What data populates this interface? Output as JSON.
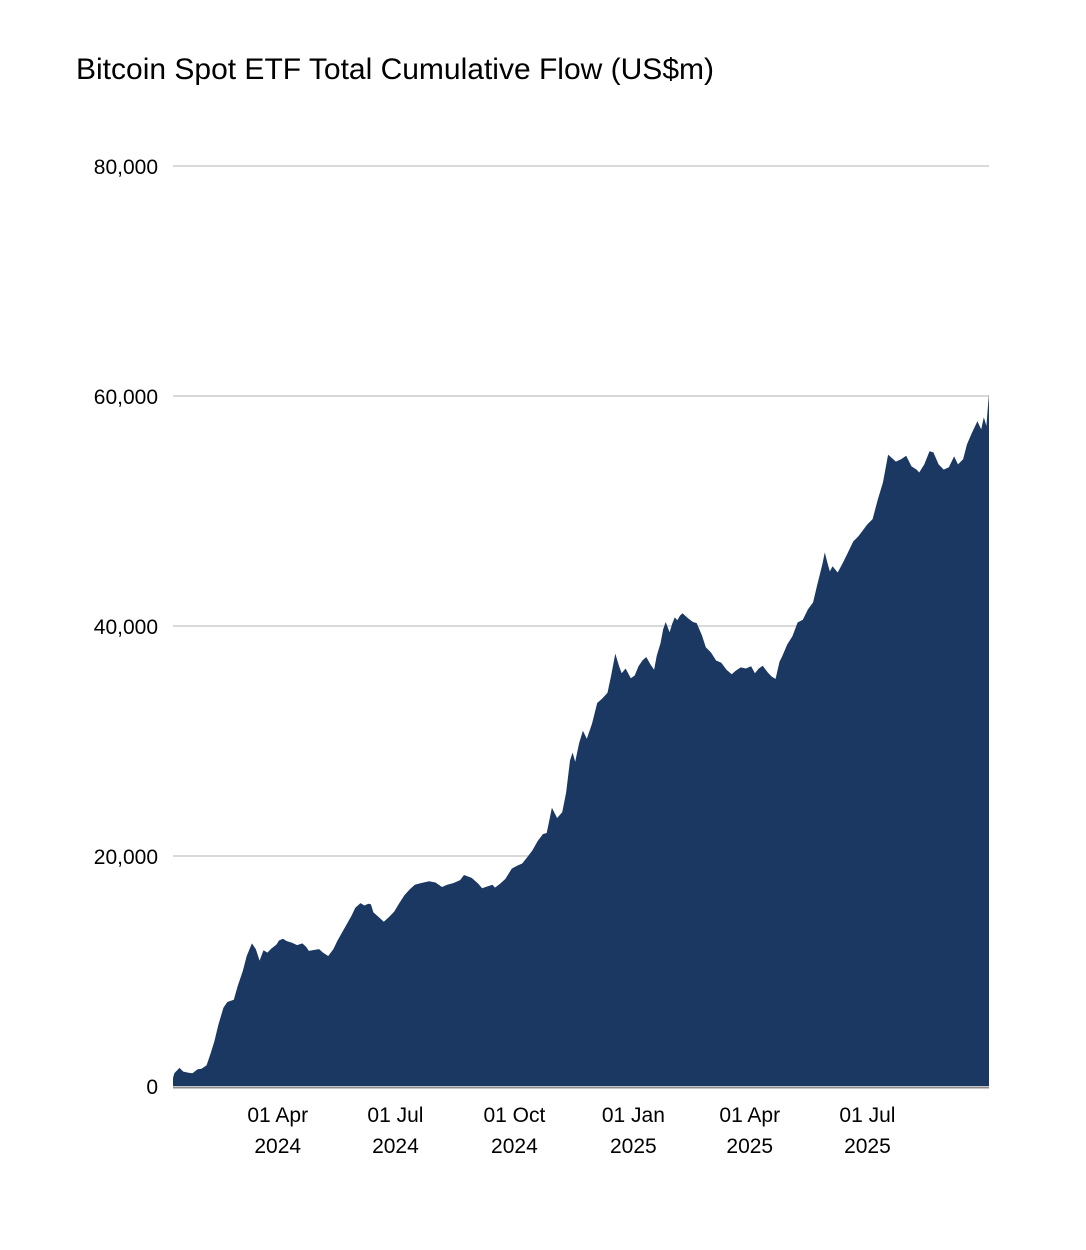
{
  "chart_data": {
    "type": "area",
    "title": "Bitcoin Spot ETF Total Cumulative Flow (US$m)",
    "xlabel": "",
    "ylabel": "",
    "ylim": [
      0,
      80000
    ],
    "x_range": [
      "2024-01-11",
      "2025-10-03"
    ],
    "grid": true,
    "legend_position": "none",
    "colors": {
      "area": "#1b3863",
      "gridline": "#d9d9d9",
      "axis_line": "#8c8c8c",
      "text": "#000000",
      "background": "#ffffff"
    },
    "y_ticks": [
      {
        "value": 0,
        "label": "0"
      },
      {
        "value": 20000,
        "label": "20,000"
      },
      {
        "value": 40000,
        "label": "40,000"
      },
      {
        "value": 60000,
        "label": "60,000"
      },
      {
        "value": 80000,
        "label": "80,000"
      }
    ],
    "x_ticks": [
      {
        "date": "2024-04-01",
        "line1": "01 Apr",
        "line2": "2024"
      },
      {
        "date": "2024-07-01",
        "line1": "01 Jul",
        "line2": "2024"
      },
      {
        "date": "2024-10-01",
        "line1": "01 Oct",
        "line2": "2024"
      },
      {
        "date": "2025-01-01",
        "line1": "01 Jan",
        "line2": "2025"
      },
      {
        "date": "2025-04-01",
        "line1": "01 Apr",
        "line2": "2025"
      },
      {
        "date": "2025-07-01",
        "line1": "01 Jul",
        "line2": "2025"
      }
    ],
    "series": [
      {
        "points": [
          [
            "2024-01-11",
            700
          ],
          [
            "2024-01-12",
            1100
          ],
          [
            "2024-01-16",
            1570
          ],
          [
            "2024-01-19",
            1250
          ],
          [
            "2024-01-23",
            1150
          ],
          [
            "2024-01-26",
            1100
          ],
          [
            "2024-01-30",
            1450
          ],
          [
            "2024-02-02",
            1500
          ],
          [
            "2024-02-06",
            1800
          ],
          [
            "2024-02-09",
            2800
          ],
          [
            "2024-02-12",
            3900
          ],
          [
            "2024-02-15",
            5300
          ],
          [
            "2024-02-19",
            6800
          ],
          [
            "2024-02-22",
            7300
          ],
          [
            "2024-02-27",
            7500
          ],
          [
            "2024-03-01",
            8700
          ],
          [
            "2024-03-05",
            10000
          ],
          [
            "2024-03-08",
            11300
          ],
          [
            "2024-03-12",
            12400
          ],
          [
            "2024-03-15",
            11900
          ],
          [
            "2024-03-18",
            10900
          ],
          [
            "2024-03-21",
            11800
          ],
          [
            "2024-03-24",
            11600
          ],
          [
            "2024-03-27",
            11950
          ],
          [
            "2024-03-31",
            12300
          ],
          [
            "2024-04-02",
            12650
          ],
          [
            "2024-04-05",
            12800
          ],
          [
            "2024-04-08",
            12600
          ],
          [
            "2024-04-12",
            12450
          ],
          [
            "2024-04-16",
            12250
          ],
          [
            "2024-04-20",
            12400
          ],
          [
            "2024-04-23",
            12100
          ],
          [
            "2024-04-25",
            11750
          ],
          [
            "2024-04-30",
            11850
          ],
          [
            "2024-05-03",
            11900
          ],
          [
            "2024-05-06",
            11600
          ],
          [
            "2024-05-10",
            11300
          ],
          [
            "2024-05-14",
            11900
          ],
          [
            "2024-05-17",
            12600
          ],
          [
            "2024-05-21",
            13400
          ],
          [
            "2024-05-24",
            14000
          ],
          [
            "2024-05-28",
            14800
          ],
          [
            "2024-05-31",
            15500
          ],
          [
            "2024-06-04",
            15900
          ],
          [
            "2024-06-07",
            15700
          ],
          [
            "2024-06-10",
            15850
          ],
          [
            "2024-06-12",
            15800
          ],
          [
            "2024-06-14",
            15100
          ],
          [
            "2024-06-19",
            14600
          ],
          [
            "2024-06-22",
            14280
          ],
          [
            "2024-06-26",
            14700
          ],
          [
            "2024-06-30",
            15150
          ],
          [
            "2024-07-04",
            15900
          ],
          [
            "2024-07-08",
            16600
          ],
          [
            "2024-07-12",
            17100
          ],
          [
            "2024-07-16",
            17500
          ],
          [
            "2024-07-21",
            17650
          ],
          [
            "2024-07-27",
            17800
          ],
          [
            "2024-08-01",
            17700
          ],
          [
            "2024-08-06",
            17300
          ],
          [
            "2024-08-10",
            17500
          ],
          [
            "2024-08-15",
            17650
          ],
          [
            "2024-08-20",
            17900
          ],
          [
            "2024-08-23",
            18350
          ],
          [
            "2024-08-29",
            18100
          ],
          [
            "2024-09-03",
            17600
          ],
          [
            "2024-09-06",
            17200
          ],
          [
            "2024-09-10",
            17350
          ],
          [
            "2024-09-14",
            17500
          ],
          [
            "2024-09-16",
            17250
          ],
          [
            "2024-09-20",
            17600
          ],
          [
            "2024-09-24",
            18000
          ],
          [
            "2024-09-29",
            18900
          ],
          [
            "2024-10-03",
            19150
          ],
          [
            "2024-10-07",
            19350
          ],
          [
            "2024-10-11",
            19900
          ],
          [
            "2024-10-15",
            20500
          ],
          [
            "2024-10-19",
            21300
          ],
          [
            "2024-10-23",
            21900
          ],
          [
            "2024-10-26",
            22000
          ],
          [
            "2024-10-30",
            24200
          ],
          [
            "2024-11-03",
            23300
          ],
          [
            "2024-11-07",
            23800
          ],
          [
            "2024-11-10",
            25500
          ],
          [
            "2024-11-13",
            28300
          ],
          [
            "2024-11-15",
            29000
          ],
          [
            "2024-11-17",
            28200
          ],
          [
            "2024-11-20",
            29800
          ],
          [
            "2024-11-23",
            30900
          ],
          [
            "2024-11-26",
            30200
          ],
          [
            "2024-11-30",
            31500
          ],
          [
            "2024-12-04",
            33300
          ],
          [
            "2024-12-08",
            33700
          ],
          [
            "2024-12-12",
            34200
          ],
          [
            "2024-12-15",
            35800
          ],
          [
            "2024-12-18",
            37600
          ],
          [
            "2024-12-21",
            36500
          ],
          [
            "2024-12-23",
            35900
          ],
          [
            "2024-12-26",
            36300
          ],
          [
            "2024-12-30",
            35450
          ],
          [
            "2025-01-02",
            35700
          ],
          [
            "2025-01-05",
            36500
          ],
          [
            "2025-01-08",
            37000
          ],
          [
            "2025-01-11",
            37300
          ],
          [
            "2025-01-14",
            36700
          ],
          [
            "2025-01-17",
            36200
          ],
          [
            "2025-01-19",
            37400
          ],
          [
            "2025-01-22",
            38500
          ],
          [
            "2025-01-24",
            39700
          ],
          [
            "2025-01-26",
            40350
          ],
          [
            "2025-01-29",
            39450
          ],
          [
            "2025-01-31",
            40200
          ],
          [
            "2025-02-02",
            40750
          ],
          [
            "2025-02-04",
            40500
          ],
          [
            "2025-02-06",
            40900
          ],
          [
            "2025-02-08",
            41100
          ],
          [
            "2025-02-12",
            40700
          ],
          [
            "2025-02-16",
            40350
          ],
          [
            "2025-02-19",
            40250
          ],
          [
            "2025-02-23",
            39200
          ],
          [
            "2025-02-26",
            38150
          ],
          [
            "2025-03-02",
            37700
          ],
          [
            "2025-03-06",
            37000
          ],
          [
            "2025-03-10",
            36800
          ],
          [
            "2025-03-14",
            36200
          ],
          [
            "2025-03-18",
            35800
          ],
          [
            "2025-03-21",
            36100
          ],
          [
            "2025-03-25",
            36400
          ],
          [
            "2025-03-29",
            36300
          ],
          [
            "2025-04-02",
            36500
          ],
          [
            "2025-04-05",
            35900
          ],
          [
            "2025-04-08",
            36300
          ],
          [
            "2025-04-11",
            36550
          ],
          [
            "2025-04-15",
            35950
          ],
          [
            "2025-04-18",
            35600
          ],
          [
            "2025-04-21",
            35400
          ],
          [
            "2025-04-24",
            36900
          ],
          [
            "2025-04-26",
            37350
          ],
          [
            "2025-04-30",
            38400
          ],
          [
            "2025-05-04",
            39100
          ],
          [
            "2025-05-08",
            40300
          ],
          [
            "2025-05-12",
            40550
          ],
          [
            "2025-05-16",
            41450
          ],
          [
            "2025-05-20",
            42050
          ],
          [
            "2025-05-23",
            43500
          ],
          [
            "2025-05-27",
            45300
          ],
          [
            "2025-05-29",
            46400
          ],
          [
            "2025-05-31",
            45500
          ],
          [
            "2025-06-02",
            44750
          ],
          [
            "2025-06-04",
            45200
          ],
          [
            "2025-06-08",
            44650
          ],
          [
            "2025-06-12",
            45500
          ],
          [
            "2025-06-16",
            46400
          ],
          [
            "2025-06-20",
            47350
          ],
          [
            "2025-06-24",
            47800
          ],
          [
            "2025-06-28",
            48400
          ],
          [
            "2025-07-01",
            48850
          ],
          [
            "2025-07-05",
            49300
          ],
          [
            "2025-07-09",
            51000
          ],
          [
            "2025-07-13",
            52500
          ],
          [
            "2025-07-17",
            54900
          ],
          [
            "2025-07-19",
            54700
          ],
          [
            "2025-07-23",
            54300
          ],
          [
            "2025-07-27",
            54500
          ],
          [
            "2025-07-31",
            54800
          ],
          [
            "2025-08-04",
            53900
          ],
          [
            "2025-08-08",
            53600
          ],
          [
            "2025-08-10",
            53350
          ],
          [
            "2025-08-14",
            54050
          ],
          [
            "2025-08-18",
            55200
          ],
          [
            "2025-08-21",
            55100
          ],
          [
            "2025-08-25",
            54050
          ],
          [
            "2025-08-29",
            53600
          ],
          [
            "2025-09-02",
            53800
          ],
          [
            "2025-09-06",
            54750
          ],
          [
            "2025-09-09",
            54050
          ],
          [
            "2025-09-13",
            54500
          ],
          [
            "2025-09-16",
            55800
          ],
          [
            "2025-09-20",
            56850
          ],
          [
            "2025-09-24",
            57800
          ],
          [
            "2025-09-27",
            57100
          ],
          [
            "2025-09-29",
            58150
          ],
          [
            "2025-10-01",
            57400
          ],
          [
            "2025-10-02",
            58850
          ],
          [
            "2025-10-03",
            60200
          ]
        ]
      }
    ]
  }
}
